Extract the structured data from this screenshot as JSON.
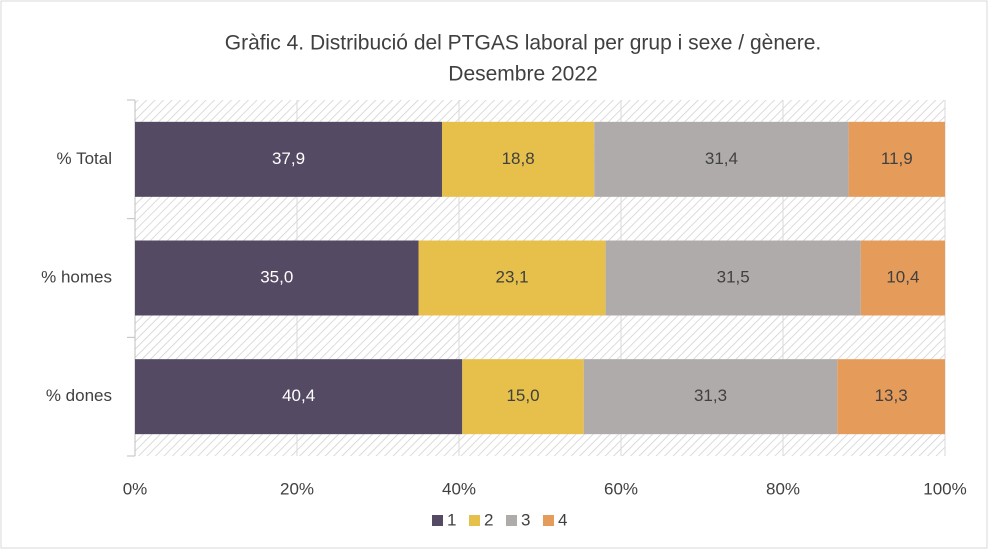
{
  "chart_data": {
    "type": "stacked_bar_horizontal",
    "title": [
      "Gràfic 4. Distribució del PTGAS laboral per grup i sexe / gènere.",
      "Desembre 2022"
    ],
    "categories": [
      "% Total",
      "% homes",
      "% dones"
    ],
    "series": [
      {
        "name": "1",
        "color": "#554a63",
        "values": [
          37.9,
          35.0,
          40.4
        ],
        "value_labels": [
          "37,9",
          "35,0",
          "40,4"
        ]
      },
      {
        "name": "2",
        "color": "#e6c04a",
        "values": [
          18.8,
          23.1,
          15.0
        ],
        "value_labels": [
          "18,8",
          "23,1",
          "15,0"
        ]
      },
      {
        "name": "3",
        "color": "#b0abab",
        "values": [
          31.4,
          31.5,
          31.3
        ],
        "value_labels": [
          "31,4",
          "31,5",
          "31,3"
        ]
      },
      {
        "name": "4",
        "color": "#e59c5a",
        "values": [
          11.9,
          10.4,
          13.3
        ],
        "value_labels": [
          "11,9",
          "10,4",
          "13,3"
        ]
      }
    ],
    "xlim": [
      0,
      100
    ],
    "xticks": [
      {
        "value": 0,
        "label": "0%"
      },
      {
        "value": 20,
        "label": "20%"
      },
      {
        "value": 40,
        "label": "40%"
      },
      {
        "value": 60,
        "label": "60%"
      },
      {
        "value": 80,
        "label": "80%"
      },
      {
        "value": 100,
        "label": "100%"
      }
    ],
    "grid": true,
    "legend": "bottom"
  }
}
